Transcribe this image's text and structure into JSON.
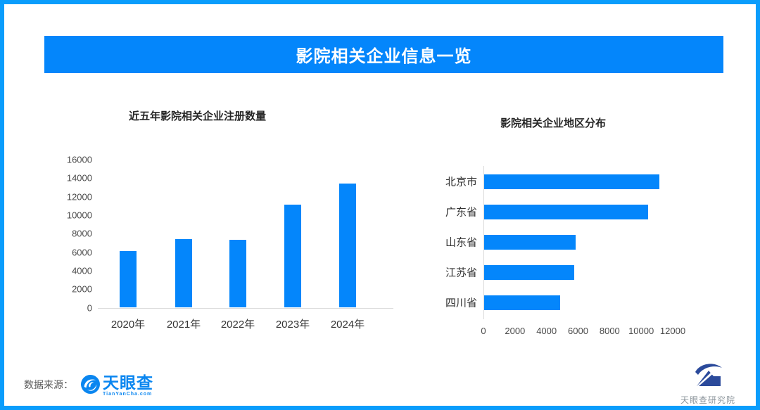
{
  "page": {
    "title": "影院相关企业信息一览"
  },
  "colors": {
    "accent_blue": "#0486fb",
    "border_blue": "#0a9dfc",
    "axis_gray": "#d9d9d9",
    "logo_blue": "#0a86f0",
    "institute_navy": "#2b4a9b"
  },
  "chart_data": [
    {
      "type": "bar",
      "orientation": "vertical",
      "title": "近五年影院相关企业注册数量",
      "categories": [
        "2020年",
        "2021年",
        "2022年",
        "2023年",
        "2024年"
      ],
      "values": [
        6150,
        7400,
        7300,
        11100,
        13400
      ],
      "xlabel": "",
      "ylabel": "",
      "ylim": [
        0,
        16000
      ],
      "yticks": [
        0,
        2000,
        4000,
        6000,
        8000,
        10000,
        12000,
        14000,
        16000
      ],
      "grid": false,
      "legend": false
    },
    {
      "type": "bar",
      "orientation": "horizontal",
      "title": "影院相关企业地区分布",
      "categories": [
        "北京市",
        "广东省",
        "山东省",
        "江苏省",
        "四川省"
      ],
      "values": [
        11100,
        10400,
        5800,
        5700,
        4800
      ],
      "xlabel": "",
      "ylabel": "",
      "xlim": [
        0,
        12000
      ],
      "xticks": [
        0,
        2000,
        4000,
        6000,
        8000,
        10000,
        12000
      ],
      "grid": false,
      "legend": false
    }
  ],
  "footer": {
    "source_label": "数据来源：",
    "logo_name": "天眼查",
    "logo_sub": "TianYanCha.com",
    "logo_icon": "tianyancha-eye-icon",
    "institute_label": "天眼查研究院",
    "institute_icon": "tianyancha-institute-icon"
  }
}
